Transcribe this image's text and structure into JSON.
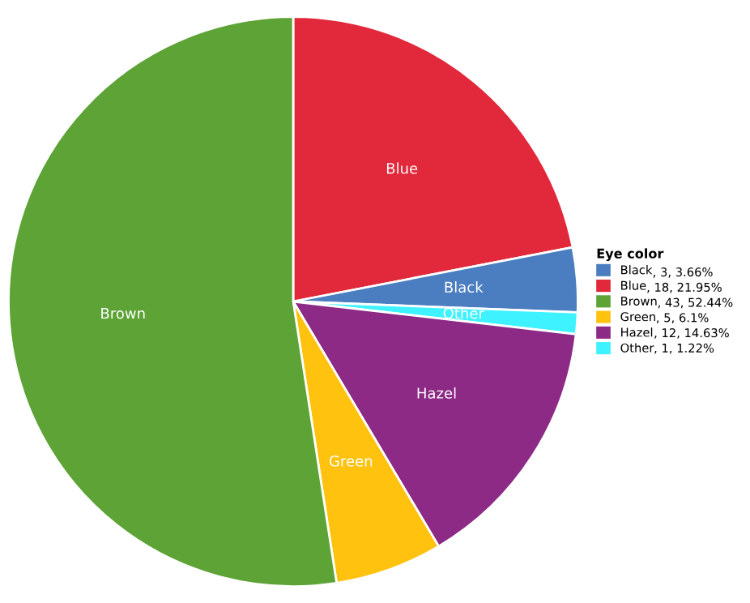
{
  "chart_data": {
    "type": "pie",
    "legend_title": "Eye color",
    "legend": "right",
    "categories": [
      "Blue",
      "Black",
      "Other",
      "Hazel",
      "Green",
      "Brown"
    ],
    "values": [
      18,
      3,
      1,
      12,
      5,
      43
    ],
    "value_labels": [
      ", 18, 21.95%",
      ", 3, 3.66%",
      ", 1, 1.22%",
      ", 12, 14.63%",
      ", 5, 6.1%",
      ", 43, 52.44%"
    ],
    "colors": [
      "#e2283b",
      "#4a7ec0",
      "#3ef2ff",
      "#8c2a86",
      "#ffc20e",
      "#5da336"
    ]
  }
}
